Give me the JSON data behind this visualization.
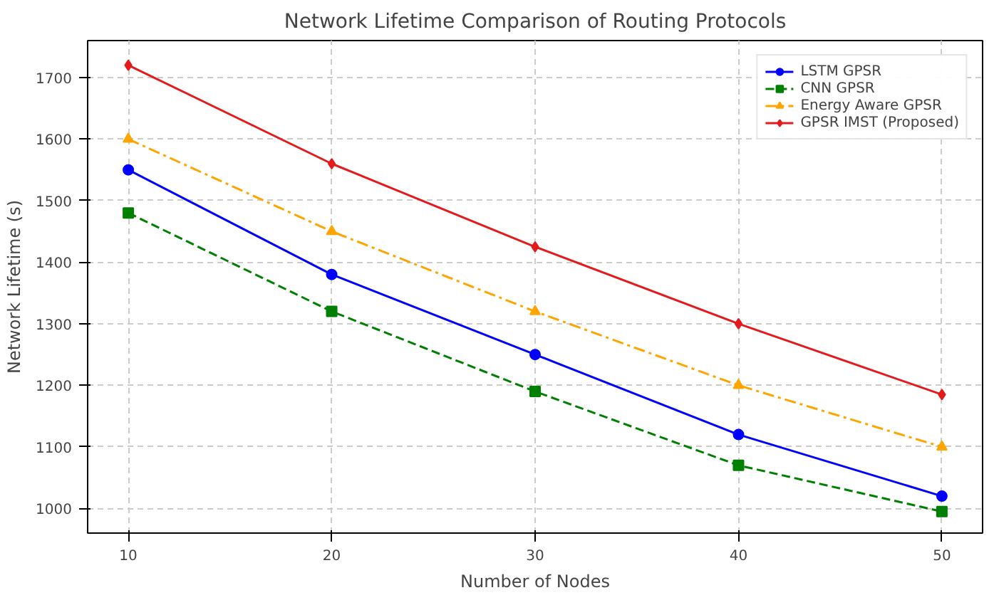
{
  "chart_data": {
    "type": "line",
    "title": "Network Lifetime Comparison of Routing Protocols",
    "xlabel": "Number of Nodes",
    "ylabel": "Network Lifetime (s)",
    "x": [
      10,
      20,
      30,
      40,
      50
    ],
    "xlim": [
      8,
      52
    ],
    "xticks": [
      10,
      20,
      30,
      40,
      50
    ],
    "ylim": [
      960,
      1760
    ],
    "yticks": [
      1000,
      1100,
      1200,
      1300,
      1400,
      1500,
      1600,
      1700
    ],
    "grid": true,
    "legend": "top right",
    "series": [
      {
        "name": "LSTM GPSR",
        "color": "#0000ff",
        "marker": "circle",
        "line_style": "solid",
        "values": [
          1550,
          1380,
          1250,
          1120,
          1020
        ]
      },
      {
        "name": "CNN GPSR",
        "color": "#008000",
        "marker": "square",
        "line_style": "dashed",
        "values": [
          1480,
          1320,
          1190,
          1070,
          995
        ]
      },
      {
        "name": "Energy Aware GPSR",
        "color": "#ffa500",
        "marker": "triangle",
        "line_style": "dashdot",
        "values": [
          1600,
          1450,
          1320,
          1200,
          1100
        ]
      },
      {
        "name": "GPSR IMST (Proposed)",
        "color": "#e41a1c",
        "marker": "diamond",
        "line_style": "solid",
        "values": [
          1720,
          1560,
          1425,
          1300,
          1185
        ]
      }
    ]
  }
}
